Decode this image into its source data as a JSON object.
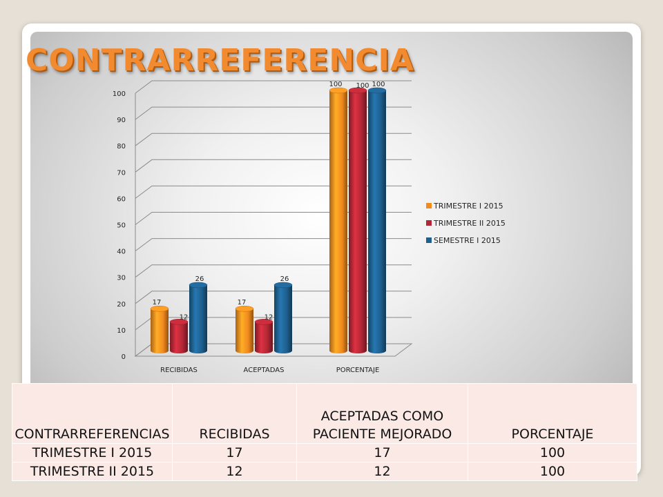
{
  "slide": {
    "title": "CONTRARREFERENCIA"
  },
  "chart_data": {
    "type": "bar",
    "categories": [
      "RECIBIDAS",
      "ACEPTADAS",
      "PORCENTAJE"
    ],
    "series": [
      {
        "name": "TRIMESTRE I 2015",
        "values": [
          17,
          17,
          100
        ],
        "color": "#f28a1e"
      },
      {
        "name": "TRIMESTRE II 2015",
        "values": [
          12,
          12,
          100
        ],
        "color": "#b22735"
      },
      {
        "name": "SEMESTRE I 2015",
        "values": [
          26,
          26,
          100
        ],
        "color": "#1e5f8e"
      }
    ],
    "yticks": [
      0,
      10,
      20,
      30,
      40,
      50,
      60,
      70,
      80,
      90,
      100
    ],
    "ylim": [
      0,
      100
    ],
    "grid": true,
    "legend_position": "right",
    "style": "3d-cylinder"
  },
  "table": {
    "headers": [
      "CONTRARREFERENCIAS",
      "RECIBIDAS",
      "ACEPTADAS COMO PACIENTE MEJORADO",
      "PORCENTAJE"
    ],
    "rows": [
      [
        "TRIMESTRE I 2015",
        "17",
        "17",
        "100"
      ],
      [
        "TRIMESTRE II 2015",
        "12",
        "12",
        "100"
      ]
    ]
  }
}
